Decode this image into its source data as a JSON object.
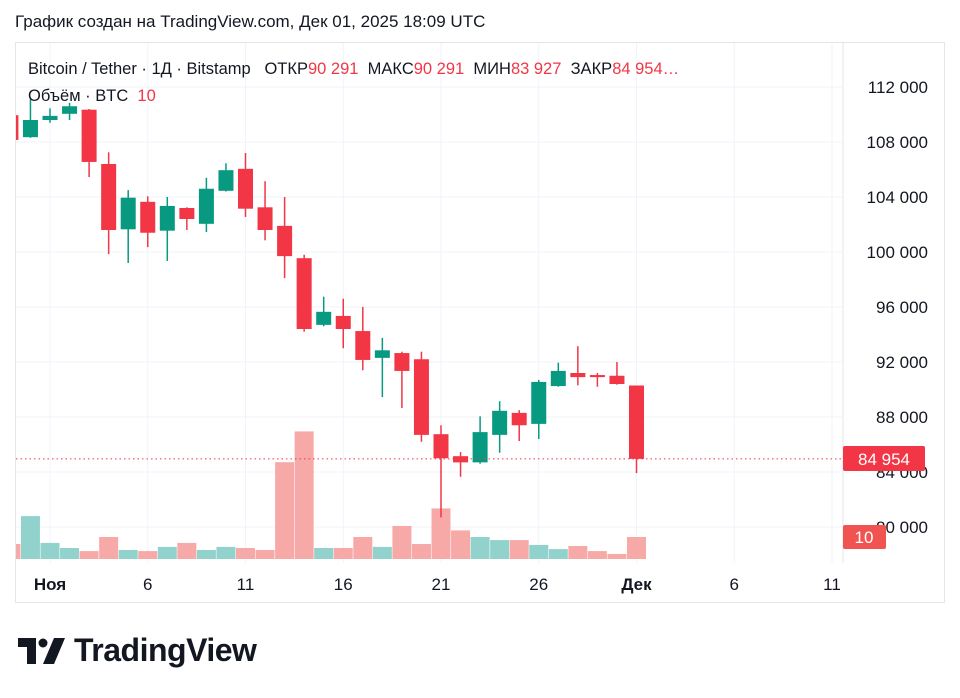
{
  "caption": "График создан на TradingView.com, Дек 01, 2025 18:09 UTC",
  "legend": {
    "symbol": "Bitcoin / Tether · 1Д · Bitstamp",
    "open_label": "ОТКР",
    "open": "90 291",
    "high_label": "МАКС",
    "high": "90 291",
    "low_label": "МИН",
    "low": "83 927",
    "close_label": "ЗАКР",
    "close": "84 954…",
    "volume_label": "Объём · BTC",
    "volume": "10"
  },
  "logo": {
    "text": "TradingView"
  },
  "colors": {
    "up": "#089981",
    "down": "#f23645",
    "volume_up": "#92d2cc",
    "volume_down": "#f7a9a7",
    "last_price": "#f23645",
    "volume_badge": "#f05350"
  },
  "chart_data": {
    "type": "candlestick",
    "interval": "1Д",
    "grid": true,
    "price_axis": {
      "position": "right",
      "ylim": [
        78500,
        115000
      ],
      "ticks": [
        112000,
        108000,
        104000,
        100000,
        96000,
        92000,
        88000,
        84000,
        80000
      ],
      "tick_labels": [
        "112 000",
        "108 000",
        "104 000",
        "100 000",
        "96 000",
        "92 000",
        "88 000",
        "84 000",
        "80 000"
      ]
    },
    "time_axis": {
      "ticks": [
        "2025-11-01",
        "2025-11-06",
        "2025-11-11",
        "2025-11-16",
        "2025-11-21",
        "2025-11-26",
        "2025-12-01",
        "2025-12-06",
        "2025-12-11"
      ],
      "tick_labels": [
        "Ноя",
        "6",
        "11",
        "16",
        "21",
        "26",
        "Дек",
        "6",
        "11"
      ]
    },
    "last_price": {
      "value": 84954,
      "label": "84 954"
    },
    "last_volume": {
      "value": 10,
      "label": "10"
    },
    "candles": [
      {
        "date": "2025-10-30",
        "o": 109950,
        "h": 110100,
        "l": 108150,
        "c": 108150,
        "v": 6.8
      },
      {
        "date": "2025-10-31",
        "o": 108350,
        "h": 111100,
        "l": 108300,
        "c": 109600,
        "v": 19.5
      },
      {
        "date": "2025-11-01",
        "o": 109600,
        "h": 110450,
        "l": 109400,
        "c": 109900,
        "v": 7.3
      },
      {
        "date": "2025-11-02",
        "o": 110050,
        "h": 110850,
        "l": 109600,
        "c": 110600,
        "v": 5.0
      },
      {
        "date": "2025-11-03",
        "o": 110350,
        "h": 110400,
        "l": 105450,
        "c": 106550,
        "v": 3.6
      },
      {
        "date": "2025-11-04",
        "o": 106400,
        "h": 107250,
        "l": 99850,
        "c": 101600,
        "v": 10.0
      },
      {
        "date": "2025-11-05",
        "o": 101650,
        "h": 104500,
        "l": 99200,
        "c": 103950,
        "v": 4.1
      },
      {
        "date": "2025-11-06",
        "o": 103650,
        "h": 104050,
        "l": 100350,
        "c": 101400,
        "v": 3.6
      },
      {
        "date": "2025-11-07",
        "o": 101550,
        "h": 104000,
        "l": 99350,
        "c": 103350,
        "v": 5.5
      },
      {
        "date": "2025-11-08",
        "o": 103200,
        "h": 103250,
        "l": 101600,
        "c": 102400,
        "v": 7.3
      },
      {
        "date": "2025-11-09",
        "o": 102050,
        "h": 105400,
        "l": 101450,
        "c": 104600,
        "v": 4.1
      },
      {
        "date": "2025-11-10",
        "o": 104450,
        "h": 106450,
        "l": 104400,
        "c": 105950,
        "v": 5.5
      },
      {
        "date": "2025-11-11",
        "o": 106050,
        "h": 107200,
        "l": 102550,
        "c": 103150,
        "v": 5.0
      },
      {
        "date": "2025-11-12",
        "o": 103250,
        "h": 105150,
        "l": 100850,
        "c": 101600,
        "v": 4.1
      },
      {
        "date": "2025-11-13",
        "o": 101900,
        "h": 104000,
        "l": 98100,
        "c": 99700,
        "v": 44.0
      },
      {
        "date": "2025-11-14",
        "o": 99550,
        "h": 99800,
        "l": 94200,
        "c": 94400,
        "v": 58.0
      },
      {
        "date": "2025-11-15",
        "o": 94700,
        "h": 96750,
        "l": 94600,
        "c": 95650,
        "v": 5.0
      },
      {
        "date": "2025-11-16",
        "o": 95350,
        "h": 96600,
        "l": 93000,
        "c": 94400,
        "v": 5.0
      },
      {
        "date": "2025-11-17",
        "o": 94250,
        "h": 96000,
        "l": 91400,
        "c": 92150,
        "v": 10.0
      },
      {
        "date": "2025-11-18",
        "o": 92300,
        "h": 93750,
        "l": 89450,
        "c": 92850,
        "v": 5.5
      },
      {
        "date": "2025-11-19",
        "o": 92650,
        "h": 92750,
        "l": 88650,
        "c": 91350,
        "v": 15.0
      },
      {
        "date": "2025-11-20",
        "o": 92200,
        "h": 92750,
        "l": 86200,
        "c": 86700,
        "v": 6.8
      },
      {
        "date": "2025-11-21",
        "o": 86750,
        "h": 87400,
        "l": 80700,
        "c": 85000,
        "v": 23.0
      },
      {
        "date": "2025-11-22",
        "o": 85150,
        "h": 85450,
        "l": 83650,
        "c": 84700,
        "v": 13.0
      },
      {
        "date": "2025-11-23",
        "o": 84700,
        "h": 88050,
        "l": 84600,
        "c": 86900,
        "v": 10.0
      },
      {
        "date": "2025-11-24",
        "o": 86700,
        "h": 89150,
        "l": 85400,
        "c": 88450,
        "v": 8.6
      },
      {
        "date": "2025-11-25",
        "o": 88300,
        "h": 88500,
        "l": 86250,
        "c": 87400,
        "v": 8.6
      },
      {
        "date": "2025-11-26",
        "o": 87500,
        "h": 90700,
        "l": 86400,
        "c": 90550,
        "v": 6.4
      },
      {
        "date": "2025-11-27",
        "o": 90250,
        "h": 91950,
        "l": 90200,
        "c": 91350,
        "v": 4.5
      },
      {
        "date": "2025-11-28",
        "o": 91200,
        "h": 93150,
        "l": 90300,
        "c": 90900,
        "v": 5.9
      },
      {
        "date": "2025-11-29",
        "o": 91050,
        "h": 91200,
        "l": 90200,
        "c": 90900,
        "v": 3.6
      },
      {
        "date": "2025-11-30",
        "o": 91000,
        "h": 92000,
        "l": 90350,
        "c": 90400,
        "v": 2.3
      },
      {
        "date": "2025-12-01",
        "o": 90291,
        "h": 90291,
        "l": 83927,
        "c": 84954,
        "v": 10.0
      }
    ]
  }
}
